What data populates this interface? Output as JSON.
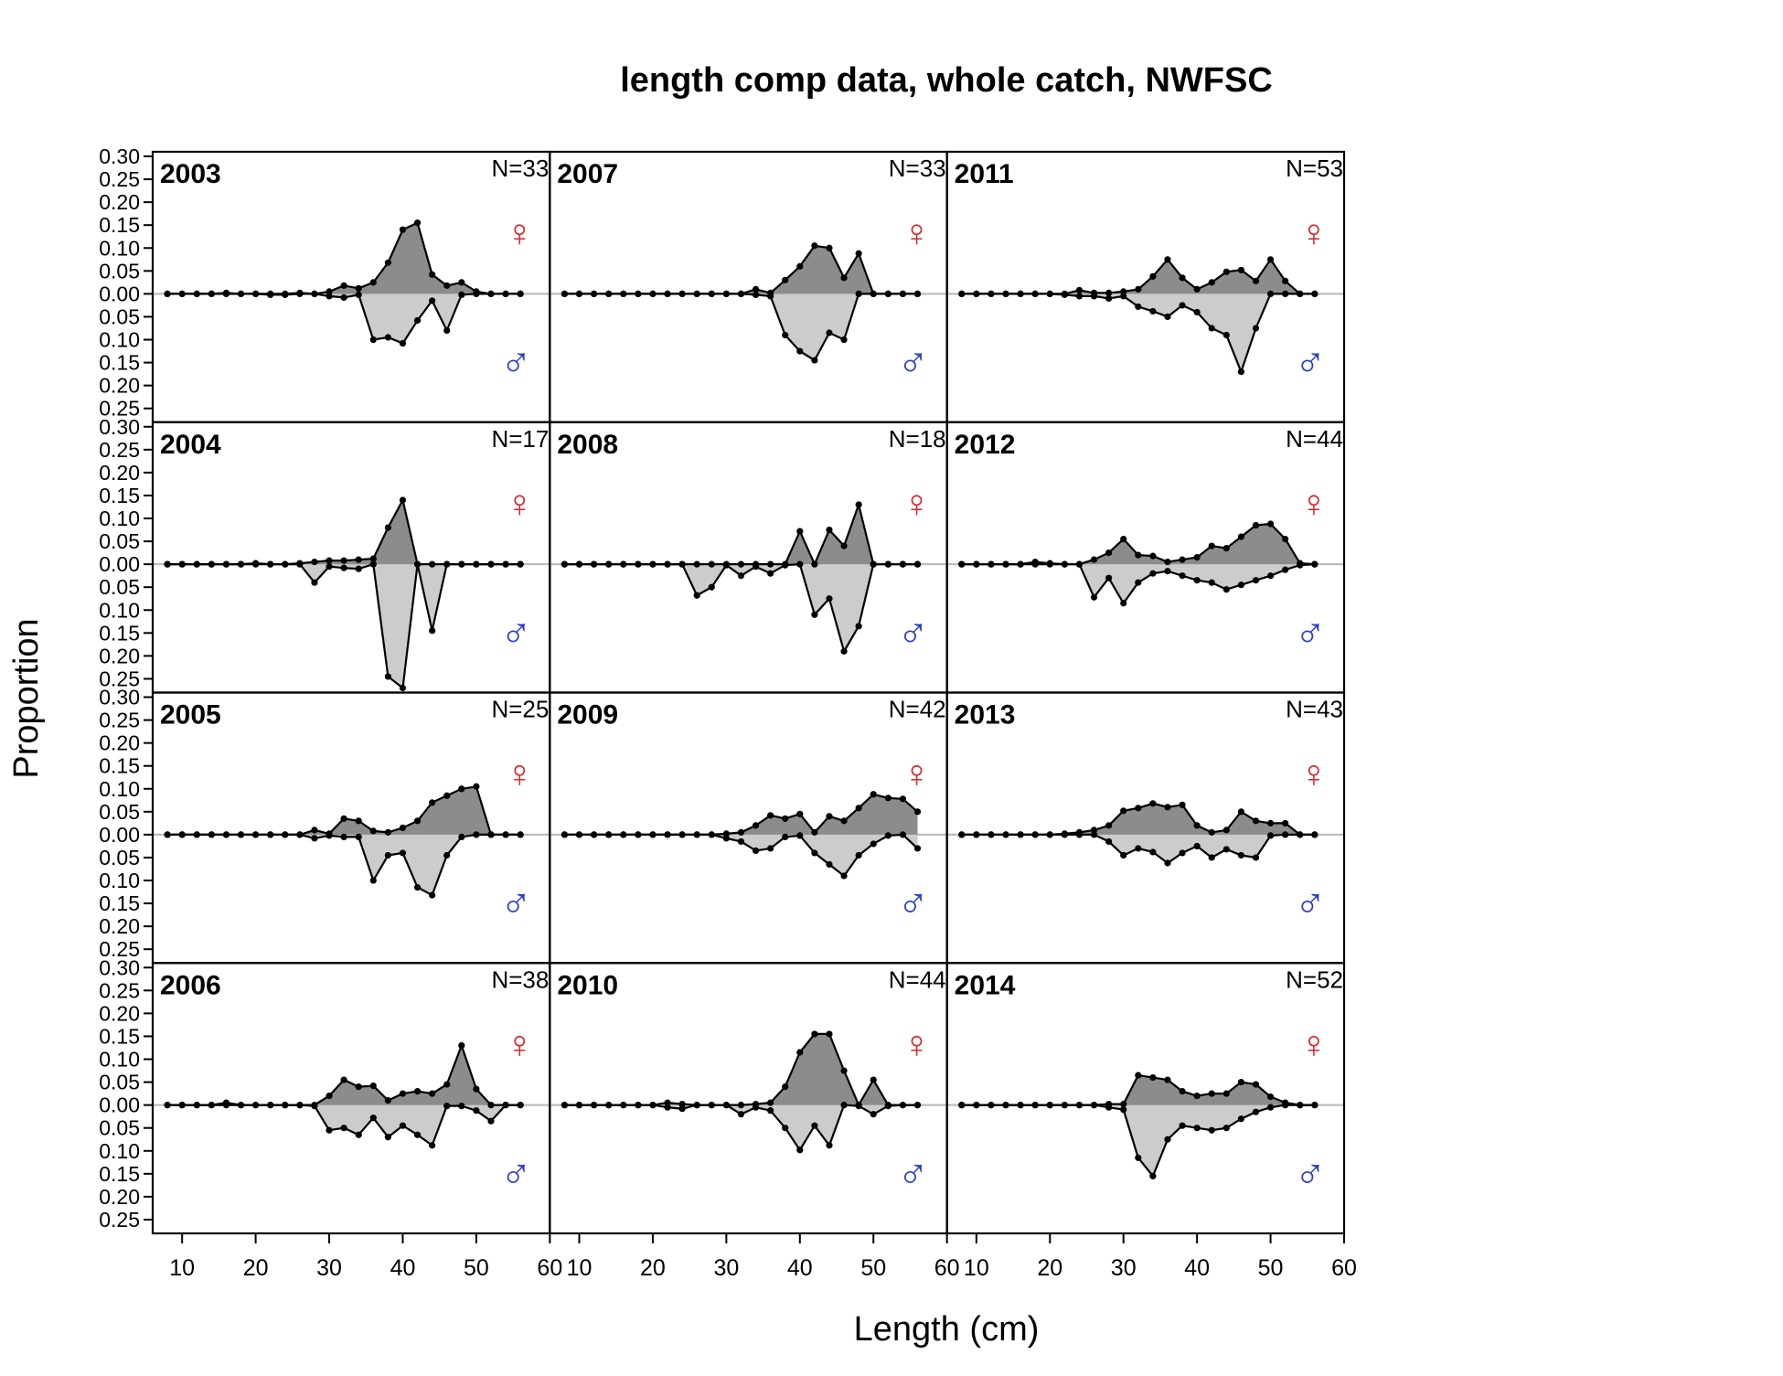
{
  "chart_data": {
    "type": "area",
    "title": "length comp data, whole catch, NWFSC",
    "xlabel": "Length (cm)",
    "ylabel": "Proportion",
    "xlim": [
      6,
      60
    ],
    "ylim": [
      -0.28,
      0.31
    ],
    "x_ticks": [
      10,
      20,
      30,
      40,
      50,
      60
    ],
    "y_ticks": [
      0.3,
      0.25,
      0.2,
      0.15,
      0.1,
      0.05,
      0.0,
      -0.05,
      -0.1,
      -0.15,
      -0.2,
      -0.25
    ],
    "y_tick_labels": [
      "0.30",
      "0.25",
      "0.20",
      "0.15",
      "0.10",
      "0.05",
      "0.00",
      "0.05",
      "0.10",
      "0.15",
      "0.20",
      "0.25"
    ],
    "x": [
      8,
      10,
      12,
      14,
      16,
      18,
      20,
      22,
      24,
      26,
      28,
      30,
      32,
      34,
      36,
      38,
      40,
      42,
      44,
      46,
      48,
      50,
      52,
      54,
      56
    ],
    "female_symbol": "♀",
    "male_symbol": "♂",
    "colors": {
      "female_fill": "#8c8c8c",
      "male_fill": "#cccccc",
      "female_symbol": "#d62728",
      "male_symbol": "#2c3ec8",
      "zero_line": "#bdbdbd"
    },
    "layout": {
      "rows": 4,
      "cols": 3,
      "order": "column-major"
    },
    "panels": [
      {
        "year": "2003",
        "n": "N=33",
        "female": [
          0,
          0,
          0,
          0,
          0.002,
          0,
          0,
          0,
          0,
          0.002,
          0,
          0.005,
          0.018,
          0.012,
          0.025,
          0.068,
          0.14,
          0.155,
          0.042,
          0.018,
          0.025,
          0.005,
          0,
          0,
          0
        ],
        "male": [
          0,
          0,
          0,
          0,
          0,
          0,
          0,
          -0.002,
          -0.002,
          0,
          0,
          -0.005,
          -0.008,
          -0.002,
          -0.1,
          -0.095,
          -0.108,
          -0.058,
          -0.015,
          -0.08,
          -0.002,
          0,
          0,
          0,
          0
        ]
      },
      {
        "year": "2004",
        "n": "N=17",
        "female": [
          0,
          0,
          0,
          0,
          0,
          0,
          0.002,
          0,
          0,
          0.002,
          0.005,
          0.008,
          0.008,
          0.01,
          0.012,
          0.08,
          0.14,
          0,
          0,
          0,
          0,
          0,
          0,
          0,
          0
        ],
        "male": [
          0,
          0,
          0,
          0,
          0,
          0,
          0,
          0,
          0,
          0,
          -0.04,
          -0.005,
          -0.008,
          -0.01,
          0,
          -0.245,
          -0.27,
          0,
          -0.145,
          0,
          0,
          0,
          0,
          0,
          0
        ]
      },
      {
        "year": "2005",
        "n": "N=25",
        "female": [
          0,
          0,
          0,
          0,
          0,
          0,
          0,
          0,
          0,
          0,
          0.01,
          0.002,
          0.035,
          0.03,
          0.008,
          0.005,
          0.015,
          0.03,
          0.07,
          0.085,
          0.1,
          0.105,
          0,
          0,
          0
        ],
        "male": [
          0,
          0,
          0,
          0,
          0,
          0,
          0,
          0,
          0,
          0,
          -0.008,
          -0.002,
          -0.005,
          -0.005,
          -0.1,
          -0.045,
          -0.04,
          -0.115,
          -0.132,
          -0.045,
          -0.005,
          0,
          0,
          0,
          0
        ]
      },
      {
        "year": "2006",
        "n": "N=38",
        "female": [
          0,
          0,
          0,
          0,
          0.005,
          0,
          0,
          0,
          0,
          0,
          0,
          0.02,
          0.055,
          0.04,
          0.042,
          0.01,
          0.025,
          0.03,
          0.025,
          0.045,
          0.13,
          0.035,
          0,
          0,
          0
        ],
        "male": [
          0,
          0,
          0,
          0,
          0,
          0,
          0,
          0,
          0,
          0,
          -0.002,
          -0.055,
          -0.05,
          -0.065,
          -0.028,
          -0.07,
          -0.045,
          -0.065,
          -0.088,
          -0.002,
          -0.002,
          -0.012,
          -0.035,
          0,
          0
        ]
      },
      {
        "year": "2007",
        "n": "N=33",
        "female": [
          0,
          0,
          0,
          0,
          0,
          0,
          0,
          0,
          0,
          0,
          0,
          0,
          0,
          0.01,
          0.002,
          0.03,
          0.06,
          0.105,
          0.1,
          0.035,
          0.088,
          0,
          0,
          0,
          0
        ],
        "male": [
          0,
          0,
          0,
          0,
          0,
          0,
          0,
          0,
          0,
          0,
          0,
          0,
          0,
          -0.002,
          -0.005,
          -0.09,
          -0.125,
          -0.145,
          -0.085,
          -0.1,
          0,
          0,
          0,
          0,
          0
        ]
      },
      {
        "year": "2008",
        "n": "N=18",
        "female": [
          0,
          0,
          0,
          0,
          0,
          0,
          0,
          0,
          0,
          0,
          0,
          0,
          0,
          0,
          0,
          0,
          0.072,
          0,
          0.075,
          0.04,
          0.13,
          0,
          0,
          0,
          0
        ],
        "male": [
          0,
          0,
          0,
          0,
          0,
          0,
          0,
          0,
          0,
          -0.068,
          -0.05,
          -0.002,
          -0.025,
          -0.005,
          -0.02,
          -0.002,
          0,
          -0.11,
          -0.075,
          -0.19,
          -0.135,
          0,
          0,
          0,
          0
        ]
      },
      {
        "year": "2009",
        "n": "N=42",
        "female": [
          0,
          0,
          0,
          0,
          0,
          0,
          0,
          0,
          0,
          0,
          0,
          0.002,
          0.005,
          0.02,
          0.042,
          0.035,
          0.045,
          0.005,
          0.04,
          0.03,
          0.058,
          0.088,
          0.08,
          0.078,
          0.05
        ],
        "male": [
          0,
          0,
          0,
          0,
          0,
          0,
          0,
          0,
          0,
          0,
          0,
          -0.008,
          -0.015,
          -0.035,
          -0.03,
          -0.005,
          -0.002,
          -0.04,
          -0.065,
          -0.09,
          -0.045,
          -0.02,
          -0.002,
          0,
          -0.03
        ]
      },
      {
        "year": "2010",
        "n": "N=44",
        "female": [
          0,
          0,
          0,
          0,
          0,
          0,
          0,
          0.005,
          0.002,
          0,
          0,
          0,
          0,
          0.002,
          0.005,
          0.04,
          0.115,
          0.155,
          0.155,
          0.075,
          0,
          0.055,
          0,
          0,
          0
        ],
        "male": [
          0,
          0,
          0,
          0,
          0,
          0,
          0,
          -0.005,
          -0.008,
          0,
          0,
          0,
          -0.02,
          -0.005,
          -0.012,
          -0.05,
          -0.098,
          -0.045,
          -0.088,
          0,
          -0.002,
          -0.02,
          -0.002,
          0,
          0
        ]
      },
      {
        "year": "2011",
        "n": "N=53",
        "female": [
          0,
          0,
          0,
          0,
          0,
          0,
          0,
          0,
          0.008,
          0.002,
          0.002,
          0.005,
          0.01,
          0.038,
          0.075,
          0.035,
          0.01,
          0.025,
          0.048,
          0.052,
          0.028,
          0.075,
          0.028,
          0,
          0
        ],
        "male": [
          0,
          0,
          0,
          0,
          0,
          0,
          0,
          -0.002,
          -0.005,
          -0.005,
          -0.01,
          -0.005,
          -0.028,
          -0.038,
          -0.05,
          -0.025,
          -0.04,
          -0.075,
          -0.09,
          -0.17,
          -0.075,
          0,
          0,
          0,
          0
        ]
      },
      {
        "year": "2012",
        "n": "N=44",
        "female": [
          0,
          0,
          0,
          0,
          0,
          0.005,
          0.002,
          0,
          0,
          0.01,
          0.025,
          0.055,
          0.02,
          0.018,
          0.005,
          0.01,
          0.015,
          0.04,
          0.035,
          0.06,
          0.085,
          0.088,
          0.055,
          0.002,
          0
        ],
        "male": [
          0,
          0,
          0,
          0,
          0,
          0,
          0,
          0,
          0,
          -0.072,
          -0.03,
          -0.085,
          -0.04,
          -0.02,
          -0.015,
          -0.025,
          -0.035,
          -0.04,
          -0.055,
          -0.045,
          -0.035,
          -0.025,
          -0.012,
          -0.002,
          0
        ]
      },
      {
        "year": "2013",
        "n": "N=43",
        "female": [
          0,
          0,
          0,
          0,
          0,
          0,
          0,
          0.002,
          0.005,
          0.01,
          0.02,
          0.052,
          0.058,
          0.068,
          0.06,
          0.065,
          0.02,
          0.005,
          0.01,
          0.05,
          0.03,
          0.025,
          0.025,
          0,
          0
        ],
        "male": [
          0,
          0,
          0,
          0,
          0,
          0,
          0,
          0,
          0,
          0,
          -0.015,
          -0.045,
          -0.03,
          -0.038,
          -0.062,
          -0.04,
          -0.025,
          -0.05,
          -0.032,
          -0.045,
          -0.05,
          -0.002,
          0,
          0,
          0
        ]
      },
      {
        "year": "2014",
        "n": "N=52",
        "female": [
          0,
          0,
          0,
          0,
          0,
          0,
          0,
          0,
          0,
          0,
          0.002,
          0.002,
          0.065,
          0.06,
          0.055,
          0.03,
          0.02,
          0.025,
          0.025,
          0.05,
          0.045,
          0.018,
          0.005,
          0,
          0
        ],
        "male": [
          0,
          0,
          0,
          0,
          0,
          0,
          0,
          0,
          0,
          0,
          -0.005,
          -0.01,
          -0.115,
          -0.155,
          -0.075,
          -0.045,
          -0.05,
          -0.055,
          -0.05,
          -0.03,
          -0.015,
          -0.005,
          0,
          0,
          0
        ]
      }
    ]
  }
}
